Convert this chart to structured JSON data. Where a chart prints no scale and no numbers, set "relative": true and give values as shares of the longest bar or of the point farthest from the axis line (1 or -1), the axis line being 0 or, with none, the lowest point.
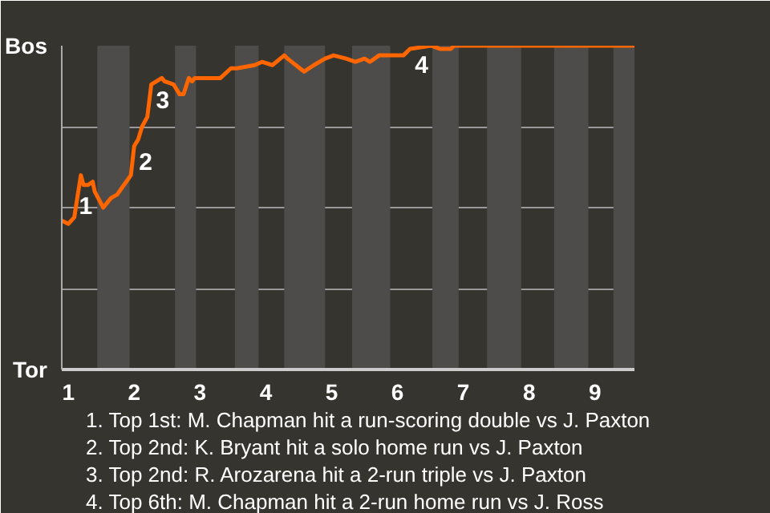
{
  "chart_data": {
    "type": "line",
    "relative": true,
    "x": [
      0.9,
      1,
      1.09,
      1.19,
      1.23,
      1.3,
      1.37,
      1.4,
      1.53,
      1.65,
      1.74,
      1.81,
      1.88,
      1.95,
      2,
      2.06,
      2.12,
      2.2,
      2.26,
      2.34,
      2.42,
      2.46,
      2.6,
      2.63,
      2.69,
      2.75,
      2.83,
      2.88,
      2.92,
      3.11,
      3.31,
      3.47,
      3.56,
      3.83,
      3.94,
      4.1,
      4.28,
      4.33,
      4.58,
      4.73,
      4.9,
      5.03,
      5.22,
      5.36,
      5.5,
      5.58,
      5.72,
      5.86,
      6.09,
      6.19,
      6.51,
      6.65,
      6.81,
      6.86,
      7.39,
      7.88,
      8.4,
      8.9,
      9.28,
      9.6
    ],
    "series": [
      {
        "color": "#ff6600",
        "values": [
          0.46,
          0.45,
          0.47,
          0.6,
          0.57,
          0.57,
          0.58,
          0.55,
          0.5,
          0.53,
          0.54,
          0.56,
          0.58,
          0.6,
          0.69,
          0.71,
          0.75,
          0.78,
          0.88,
          0.89,
          0.9,
          0.89,
          0.88,
          0.87,
          0.85,
          0.85,
          0.9,
          0.89,
          0.9,
          0.9,
          0.9,
          0.93,
          0.93,
          0.94,
          0.95,
          0.94,
          0.97,
          0.96,
          0.92,
          0.94,
          0.96,
          0.97,
          0.96,
          0.95,
          0.96,
          0.95,
          0.97,
          0.97,
          0.97,
          0.99,
          1.0,
          0.99,
          0.99,
          1.0,
          1.0,
          1.0,
          1.0,
          1.0,
          1.0,
          1.0
        ]
      }
    ],
    "xlim": [
      0.9,
      9.6
    ],
    "xticks": [
      1,
      2,
      3,
      4,
      5,
      6,
      7,
      8,
      9
    ],
    "grid": "y",
    "bands": [
      {
        "axis": "x",
        "from": 1.44,
        "to": 1.93,
        "color": "#4d4c4a"
      },
      {
        "axis": "x",
        "from": 2.62,
        "to": 2.94,
        "color": "#4d4c4a"
      },
      {
        "axis": "x",
        "from": 3.53,
        "to": 3.89,
        "color": "#4d4c4a"
      },
      {
        "axis": "x",
        "from": 4.28,
        "to": 4.9,
        "color": "#4d4c4a"
      },
      {
        "axis": "x",
        "from": 5.31,
        "to": 5.89,
        "color": "#4d4c4a"
      },
      {
        "axis": "x",
        "from": 6.53,
        "to": 6.93,
        "color": "#4d4c4a"
      },
      {
        "axis": "x",
        "from": 7.36,
        "to": 7.88,
        "color": "#4d4c4a"
      },
      {
        "axis": "x",
        "from": 8.38,
        "to": 8.9,
        "color": "#4d4c4a"
      },
      {
        "axis": "x",
        "from": 9.28,
        "to": 9.6,
        "color": "#4d4c4a"
      }
    ],
    "annotations": [
      "Bos",
      "Tor",
      {
        "text": "1",
        "x": 1.09,
        "y": 0.47
      },
      {
        "text": "2",
        "x": 2,
        "y": 0.69
      },
      {
        "text": "3",
        "x": 2.26,
        "y": 0.88
      },
      {
        "text": "4",
        "x": 6.19,
        "y": 0.99
      },
      "1. Top 1st: M. Chapman hit a run-scoring double vs J. Paxton",
      "2. Top 2nd: K. Bryant hit a solo home run vs J. Paxton",
      "3. Top 2nd: R. Arozarena hit a 2-run triple vs J. Paxton",
      "4. Top 6th: M. Chapman hit a 2-run home run vs J. Ross"
    ]
  }
}
